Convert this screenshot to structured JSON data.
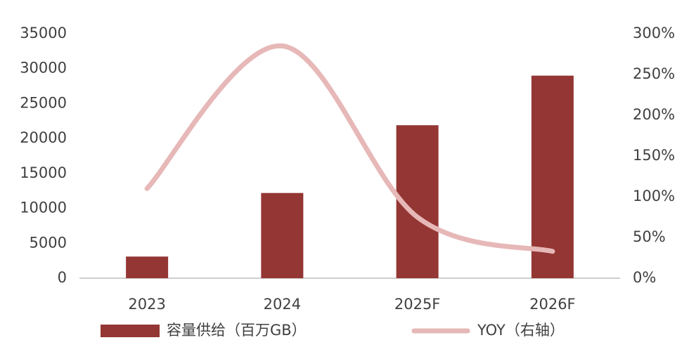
{
  "chart_data": {
    "type": "bar-line",
    "categories": [
      "2023",
      "2024",
      "2025F",
      "2026F"
    ],
    "series": [
      {
        "name": "容量供给（百万GB）",
        "type": "bar",
        "color": "#943634",
        "values": [
          3100,
          12200,
          21900,
          29000
        ]
      },
      {
        "name": "YOY（右轴）",
        "type": "line",
        "axis": "y2",
        "color": "#e6b8b7",
        "values": [
          110,
          285,
          75,
          33
        ]
      }
    ],
    "ylim": [
      0,
      35000
    ],
    "yticks": [
      0,
      5000,
      10000,
      15000,
      20000,
      25000,
      30000,
      35000
    ],
    "y2lim": [
      0,
      300
    ],
    "y2ticks": [
      {
        "value": 0,
        "label": "0%"
      },
      {
        "value": 50,
        "label": "50%"
      },
      {
        "value": 100,
        "label": "100%"
      },
      {
        "value": 150,
        "label": "150%"
      },
      {
        "value": 200,
        "label": "200%"
      },
      {
        "value": 250,
        "label": "250%"
      },
      {
        "value": 300,
        "label": "300%"
      }
    ],
    "grid": false,
    "legend": "bottom"
  }
}
